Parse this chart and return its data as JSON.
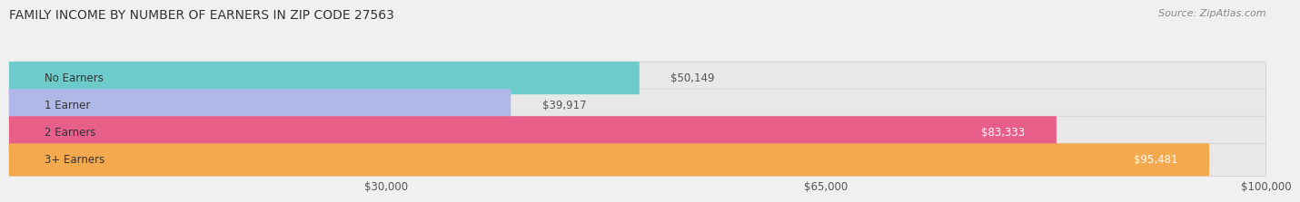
{
  "title": "FAMILY INCOME BY NUMBER OF EARNERS IN ZIP CODE 27563",
  "source": "Source: ZipAtlas.com",
  "categories": [
    "No Earners",
    "1 Earner",
    "2 Earners",
    "3+ Earners"
  ],
  "values": [
    50149,
    39917,
    83333,
    95481
  ],
  "bar_colors": [
    "#6ecbcb",
    "#b0b8e8",
    "#e8608a",
    "#f5a94e"
  ],
  "xmin": 0,
  "xmax": 100000,
  "xticks": [
    30000,
    65000,
    100000
  ],
  "xtick_labels": [
    "$30,000",
    "$65,000",
    "$100,000"
  ],
  "background_color": "#f0f0f0",
  "bar_background": "#e8e8e8",
  "value_labels": [
    "$50,149",
    "$39,917",
    "$83,333",
    "$95,481"
  ],
  "value_inside": [
    false,
    false,
    true,
    true
  ],
  "title_fontsize": 10,
  "source_fontsize": 8,
  "bar_height": 0.6,
  "fig_width": 14.06,
  "fig_height": 2.34
}
